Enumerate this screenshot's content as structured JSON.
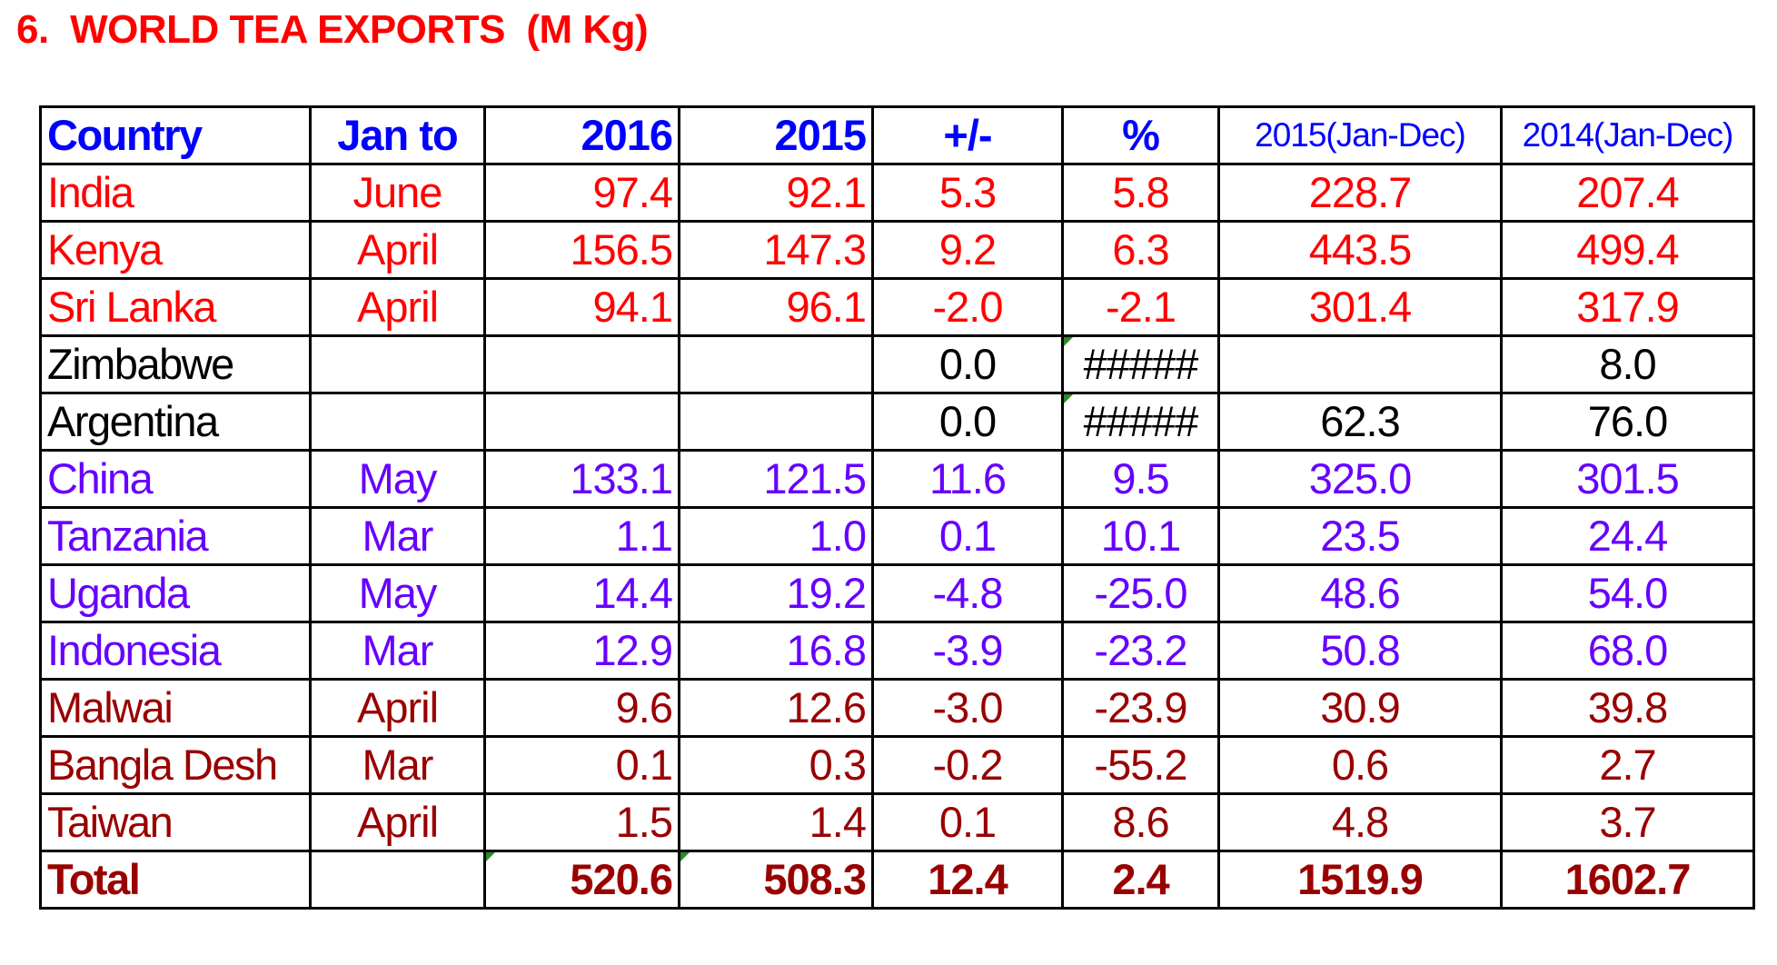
{
  "title": "6.  WORLD TEA EXPORTS  (M Kg)",
  "header": {
    "country": "Country",
    "period": "Jan  to",
    "y2016": "2016",
    "y2015": "2015",
    "diff": "+/-",
    "pct": "%",
    "full2015": "2015(Jan-Dec)",
    "full2014": "2014(Jan-Dec)"
  },
  "rows": [
    {
      "country": "India",
      "period": "June",
      "y2016": "97.4",
      "y2015": "92.1",
      "diff": "5.3",
      "pct": "5.8",
      "full2015": "228.7",
      "full2014": "207.4"
    },
    {
      "country": "Kenya",
      "period": "April",
      "y2016": "156.5",
      "y2015": "147.3",
      "diff": "9.2",
      "pct": "6.3",
      "full2015": "443.5",
      "full2014": "499.4"
    },
    {
      "country": "Sri Lanka",
      "period": "April",
      "y2016": "94.1",
      "y2015": "96.1",
      "diff": "-2.0",
      "pct": "-2.1",
      "full2015": "301.4",
      "full2014": "317.9"
    },
    {
      "country": "Zimbabwe",
      "period": "",
      "y2016": "",
      "y2015": "",
      "diff": "0.0",
      "pct": "#####",
      "full2015": "",
      "full2014": "8.0"
    },
    {
      "country": "Argentina",
      "period": "",
      "y2016": "",
      "y2015": "",
      "diff": "0.0",
      "pct": "#####",
      "full2015": "62.3",
      "full2014": "76.0"
    },
    {
      "country": "China",
      "period": "May",
      "y2016": "133.1",
      "y2015": "121.5",
      "diff": "11.6",
      "pct": "9.5",
      "full2015": "325.0",
      "full2014": "301.5"
    },
    {
      "country": "Tanzania",
      "period": "Mar",
      "y2016": "1.1",
      "y2015": "1.0",
      "diff": "0.1",
      "pct": "10.1",
      "full2015": "23.5",
      "full2014": "24.4"
    },
    {
      "country": "Uganda",
      "period": "May",
      "y2016": "14.4",
      "y2015": "19.2",
      "diff": "-4.8",
      "pct": "-25.0",
      "full2015": "48.6",
      "full2014": "54.0"
    },
    {
      "country": "Indonesia",
      "period": "Mar",
      "y2016": "12.9",
      "y2015": "16.8",
      "diff": "-3.9",
      "pct": "-23.2",
      "full2015": "50.8",
      "full2014": "68.0"
    },
    {
      "country": "Malwai",
      "period": "April",
      "y2016": "9.6",
      "y2015": "12.6",
      "diff": "-3.0",
      "pct": "-23.9",
      "full2015": "30.9",
      "full2014": "39.8"
    },
    {
      "country": "Bangla Desh",
      "period": "Mar",
      "y2016": "0.1",
      "y2015": "0.3",
      "diff": "-0.2",
      "pct": "-55.2",
      "full2015": "0.6",
      "full2014": "2.7"
    },
    {
      "country": "Taiwan",
      "period": "April",
      "y2016": "1.5",
      "y2015": "1.4",
      "diff": "0.1",
      "pct": "8.6",
      "full2015": "4.8",
      "full2014": "3.7"
    }
  ],
  "total": {
    "country": "Total",
    "period": "",
    "y2016": "520.6",
    "y2015": "508.3",
    "diff": "12.4",
    "pct": "2.4",
    "full2015": "1519.9",
    "full2014": "1602.7"
  },
  "colors": {
    "title": "#ff0000",
    "header": "#0000ff",
    "red_rows": "#ff0000",
    "black_rows": "#000000",
    "violet_rows": "#6600ff",
    "dark_red_rows": "#990000",
    "border": "#000000"
  }
}
